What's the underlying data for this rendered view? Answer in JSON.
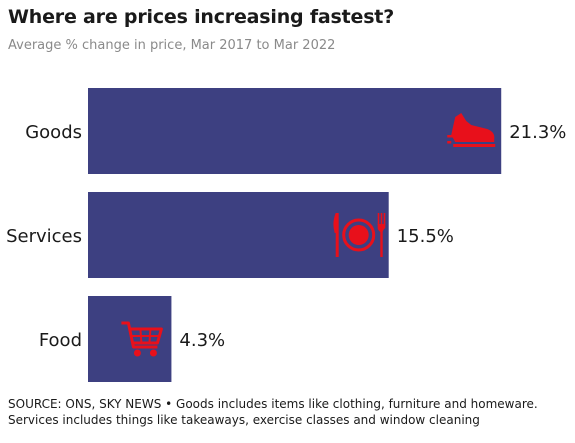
{
  "title": "Where are prices increasing fastest?",
  "subtitle": "Average % change in price, Mar 2017 to Mar 2022",
  "source": "SOURCE: ONS, SKY NEWS • Goods includes items like clothing, furniture and homeware. Services includes things like takeaways, exercise classes and window cleaning",
  "colors": {
    "bar": "#3d4081",
    "icon": "#e8101b",
    "text": "#1a1a1a"
  },
  "chart_data": {
    "type": "bar",
    "orientation": "horizontal",
    "categories": [
      "Goods",
      "Services",
      "Food"
    ],
    "values": [
      21.3,
      15.5,
      4.3
    ],
    "value_labels": [
      "21.3%",
      "15.5%",
      "4.3%"
    ],
    "icons": [
      "trainer-shoe-icon",
      "knife-plate-fork-icon",
      "shopping-trolley-icon"
    ],
    "title": "Where are prices increasing fastest?",
    "subtitle": "Average % change in price, Mar 2017 to Mar 2022",
    "xlabel": "",
    "ylabel": "",
    "grid": false
  }
}
